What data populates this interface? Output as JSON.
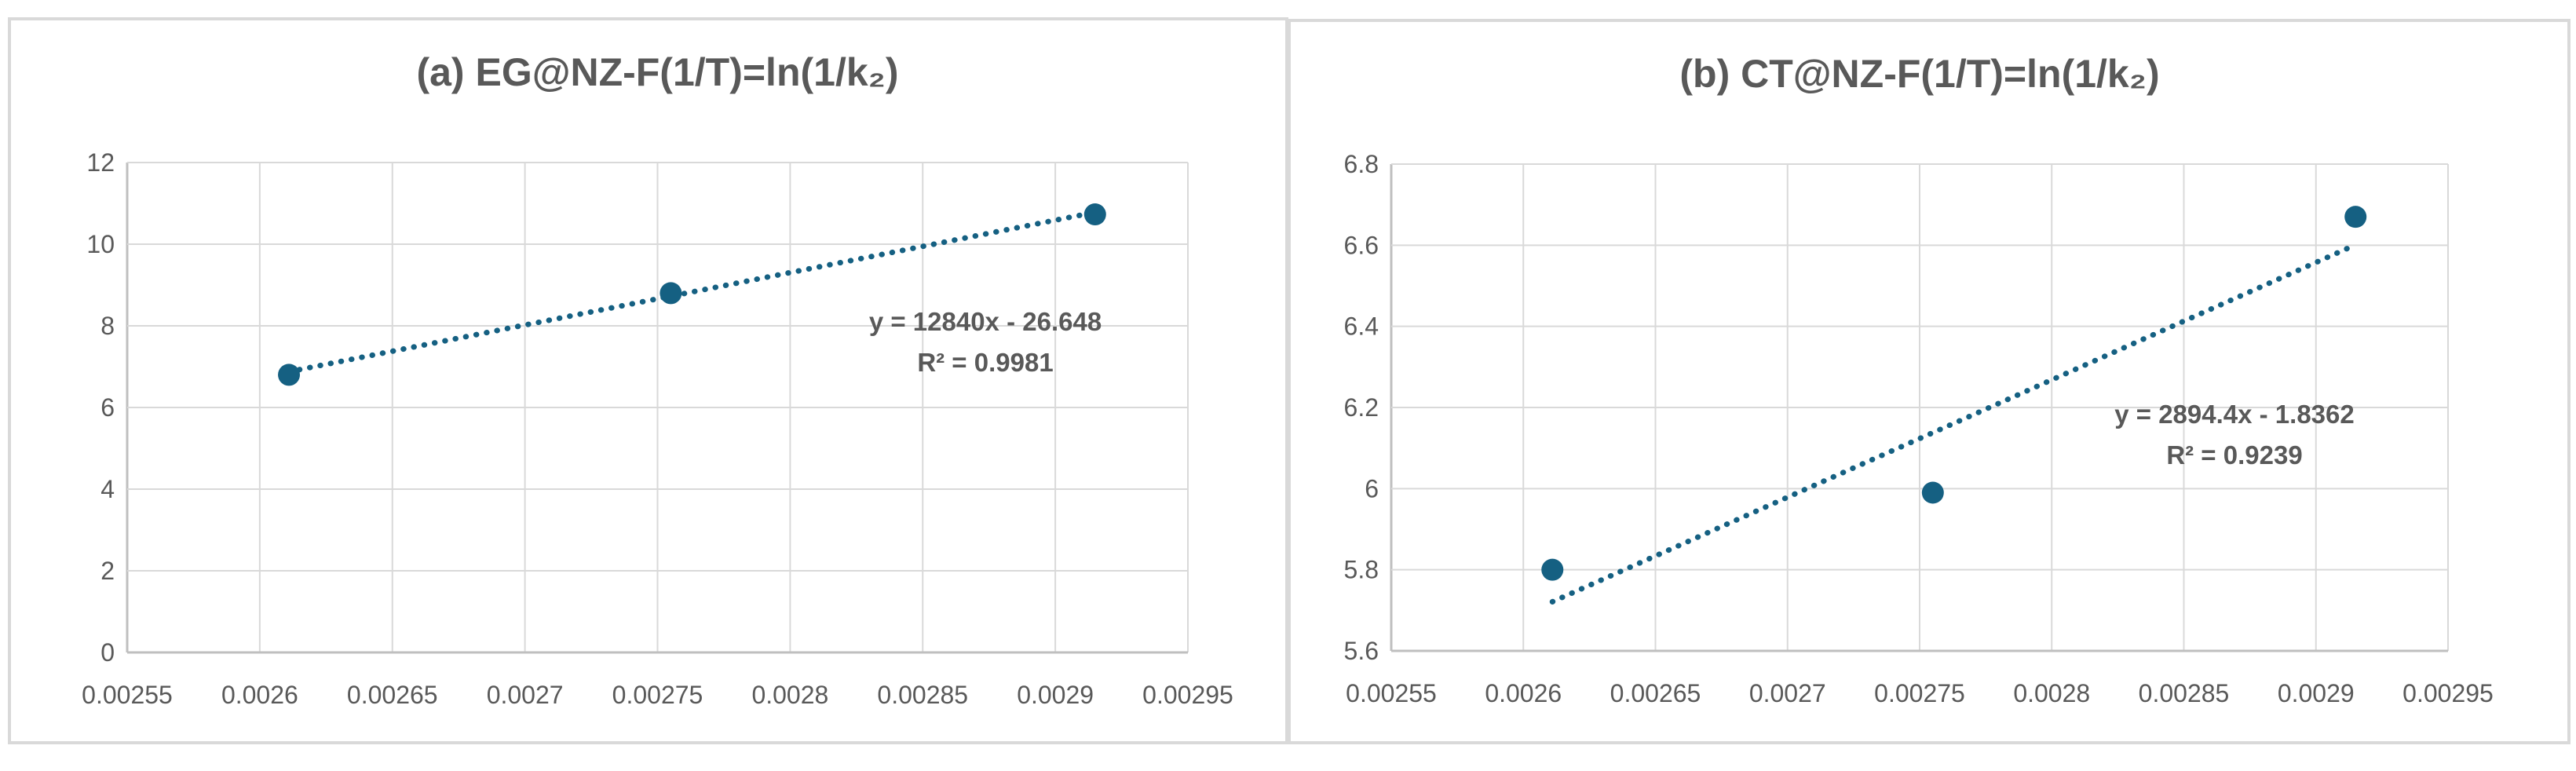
{
  "page": {
    "background_color": "#ffffff",
    "panel_border_color": "#d9d9d9"
  },
  "chart_data": [
    {
      "type": "scatter",
      "title": "(a) EG@NZ-F(1/T)=ln(1/k₂)",
      "xlabel": "",
      "ylabel": "",
      "x": [
        0.002611,
        0.002755,
        0.002915
      ],
      "y": [
        6.8,
        8.8,
        10.73
      ],
      "xlim": [
        0.00255,
        0.00295
      ],
      "ylim": [
        0,
        12
      ],
      "x_ticks": [
        "0.00255",
        "0.0026",
        "0.00265",
        "0.0027",
        "0.00275",
        "0.0028",
        "0.00285",
        "0.0029",
        "0.00295"
      ],
      "y_ticks": [
        "0",
        "2",
        "4",
        "6",
        "8",
        "10",
        "12"
      ],
      "grid": true,
      "legend": "none",
      "trendline": {
        "type": "linear",
        "style": "dotted",
        "slope": 12840,
        "intercept": -26.648,
        "x_start": 0.002611,
        "x_end": 0.002915,
        "label": "y = 12840x - 26.648",
        "r2_label": "R² = 0.9981"
      },
      "colors": {
        "marker": "#156082",
        "trendline": "#156082",
        "gridline": "#d9d9d9",
        "axis": "#bfbfbf",
        "text": "#595959"
      }
    },
    {
      "type": "scatter",
      "title": "(b) CT@NZ-F(1/T)=ln(1/k₂)",
      "xlabel": "",
      "ylabel": "",
      "x": [
        0.002611,
        0.002755,
        0.002915
      ],
      "y": [
        5.8,
        5.99,
        6.67
      ],
      "xlim": [
        0.00255,
        0.00295
      ],
      "ylim": [
        5.6,
        6.8
      ],
      "x_ticks": [
        "0.00255",
        "0.0026",
        "0.00265",
        "0.0027",
        "0.00275",
        "0.0028",
        "0.00285",
        "0.0029",
        "0.00295"
      ],
      "y_ticks": [
        "5.6",
        "5.8",
        "6",
        "6.2",
        "6.4",
        "6.6",
        "6.8"
      ],
      "grid": true,
      "legend": "none",
      "trendline": {
        "type": "linear",
        "style": "dotted",
        "slope": 2894.4,
        "intercept": -1.8362,
        "x_start": 0.002611,
        "x_end": 0.002915,
        "label": "y = 2894.4x - 1.8362",
        "r2_label": "R² = 0.9239"
      },
      "colors": {
        "marker": "#156082",
        "trendline": "#156082",
        "gridline": "#d9d9d9",
        "axis": "#bfbfbf",
        "text": "#595959"
      }
    }
  ]
}
